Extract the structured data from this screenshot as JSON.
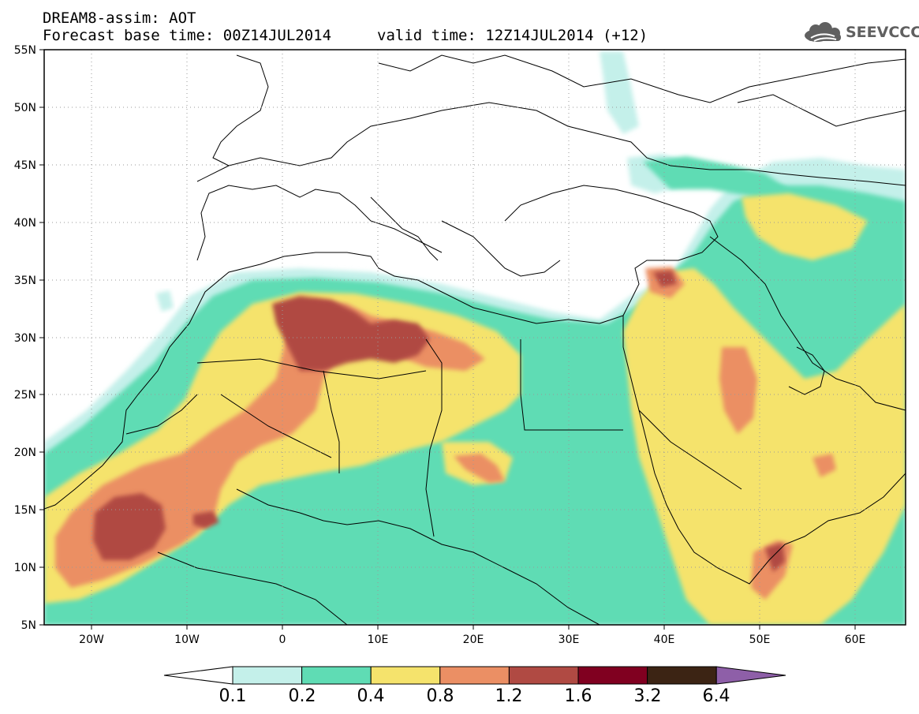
{
  "header": {
    "title": "DREAM8-assim: AOT",
    "base_time": "Forecast base time: 00Z14JUL2014",
    "valid_time": "valid time: 12Z14JUL2014 (+12)"
  },
  "logo": {
    "text": "SEEVCCC",
    "icon": "cloud-icon"
  },
  "map": {
    "projection": "lat-lon",
    "lon_range": [
      -25,
      65
    ],
    "lat_range": [
      5,
      55
    ],
    "lon_ticks": [
      "20W",
      "10W",
      "0",
      "10E",
      "20E",
      "30E",
      "40E",
      "50E",
      "60E"
    ],
    "lat_ticks": [
      "55N",
      "50N",
      "45N",
      "40N",
      "35N",
      "30N",
      "25N",
      "20N",
      "15N",
      "10N",
      "5N"
    ],
    "grid": true
  },
  "colorbar": {
    "levels": [
      "0.1",
      "0.2",
      "0.4",
      "0.8",
      "1.2",
      "1.6",
      "3.2",
      "6.4"
    ],
    "colors": [
      "#ffffff",
      "#c4f0ea",
      "#5fdcb4",
      "#f5e36c",
      "#eb8f64",
      "#b04a43",
      "#800020",
      "#3c2414",
      "#8e5fa8"
    ]
  }
}
